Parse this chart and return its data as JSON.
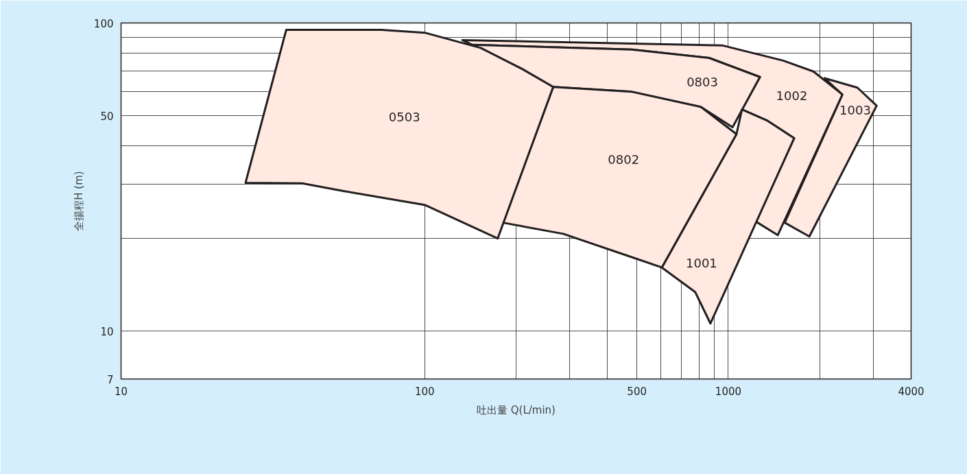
{
  "chart_data": {
    "type": "area",
    "xlabel": "吐出量 Q(L/min)",
    "ylabel": "全揚程H (m)",
    "log": "xy",
    "grid": true,
    "xlim": [
      10,
      4000
    ],
    "ylim": [
      7,
      100
    ],
    "xticks": [
      10,
      100,
      {
        "value": 200,
        "label": null
      },
      {
        "value": 300,
        "label": null
      },
      {
        "value": 400,
        "label": null
      },
      500,
      {
        "value": 600,
        "label": null
      },
      {
        "value": 700,
        "label": null
      },
      {
        "value": 800,
        "label": null
      },
      {
        "value": 900,
        "label": null
      },
      1000,
      {
        "value": 2000,
        "label": null
      },
      {
        "value": 3000,
        "label": null
      },
      4000
    ],
    "yticks": [
      7,
      10,
      {
        "value": 20,
        "label": null
      },
      {
        "value": 30,
        "label": null
      },
      {
        "value": 40,
        "label": null
      },
      50,
      {
        "value": 60,
        "label": null
      },
      {
        "value": 70,
        "label": null
      },
      {
        "value": 80,
        "label": null
      },
      {
        "value": 90,
        "label": null
      },
      100
    ],
    "series": [
      {
        "name": "1002",
        "color": "#ffe9e1",
        "x": [
          133,
          959,
          1517,
          1908,
          2377,
          1455,
          1231,
          1648,
          1340,
          1109,
          1271,
          865,
          482,
          143
        ],
        "values": [
          88,
          84.5,
          75.5,
          69.6,
          58.6,
          20.5,
          22.7,
          42.3,
          48.3,
          52.4,
          66.8,
          77,
          82,
          85
        ]
      },
      {
        "name": "1003",
        "color": "#ffe9e1",
        "x": [
          2075,
          2661,
          3080,
          1849,
          1534,
          2377
        ],
        "values": [
          66.2,
          61.7,
          53.9,
          20.3,
          22.5,
          58.6
        ]
      },
      {
        "name": "0803",
        "color": "#ffe9e1",
        "x": [
          143,
          482,
          865,
          1271,
          1033,
          813,
          482,
          265,
          209
        ],
        "values": [
          85,
          82,
          77,
          66.8,
          45.9,
          53.4,
          59.8,
          62,
          71
        ]
      },
      {
        "name": "1001",
        "color": "#ffe9e1",
        "x": [
          1109,
          1340,
          1648,
          873,
          778,
          604,
          1064
        ],
        "values": [
          52.4,
          48.3,
          42.3,
          10.6,
          13.4,
          16.1,
          43.6
        ]
      },
      {
        "name": "0802",
        "color": "#ffe9e1",
        "x": [
          265,
          482,
          813,
          1064,
          604,
          480,
          286,
          181
        ],
        "values": [
          62,
          59.8,
          53.4,
          43.6,
          16.1,
          17.4,
          20.7,
          22.5
        ]
      },
      {
        "name": "0503",
        "color": "#ffe9e1",
        "x": [
          35,
          72,
          100,
          153,
          209,
          265,
          174,
          100,
          54,
          39.5,
          25.7
        ],
        "values": [
          95,
          95,
          93,
          83,
          71,
          62,
          20,
          25.7,
          28.5,
          30.2,
          30.3
        ]
      }
    ]
  }
}
